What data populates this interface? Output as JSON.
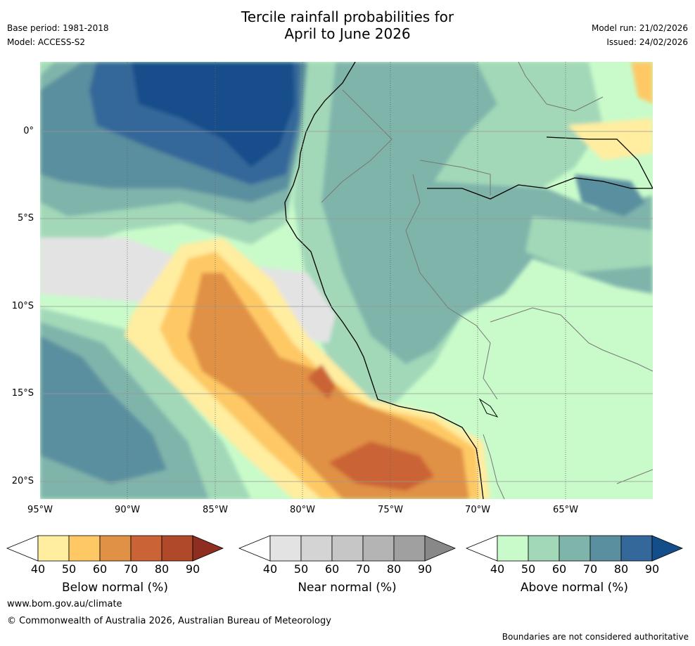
{
  "title": {
    "line1": "Tercile rainfall probabilities for",
    "line2": "April to June 2026"
  },
  "header": {
    "base_period": "Base period: 1981-2018",
    "model": "Model: ACCESS-S2",
    "model_run": "Model run: 21/02/2026",
    "issued": "Issued: 24/02/2026"
  },
  "map": {
    "lat_labels": [
      "0°",
      "5°S",
      "10°S",
      "15°S",
      "20°S"
    ],
    "lon_labels": [
      "95°W",
      "90°W",
      "85°W",
      "80°W",
      "75°W",
      "70°W",
      "65°W"
    ],
    "lat_values": [
      0,
      -5,
      -10,
      -15,
      -20
    ],
    "lon_values": [
      -95,
      -90,
      -85,
      -80,
      -75,
      -70,
      -65
    ],
    "extent": {
      "lon_min": -95,
      "lon_max": -60,
      "lat_min": -21,
      "lat_max": 4
    }
  },
  "colorbars": {
    "below": {
      "label": "Below normal (%)",
      "ticks": [
        "40",
        "50",
        "60",
        "70",
        "80",
        "90"
      ],
      "colors": [
        "#ffeda0",
        "#fec965",
        "#e09145",
        "#ca6335",
        "#b0482a",
        "#8e2e20"
      ]
    },
    "near": {
      "label": "Near normal (%)",
      "ticks": [
        "40",
        "50",
        "60",
        "70",
        "80",
        "90"
      ],
      "colors": [
        "#e3e3e3",
        "#d4d4d4",
        "#c6c6c6",
        "#b4b4b4",
        "#a0a0a0",
        "#888888"
      ]
    },
    "above": {
      "label": "Above normal (%)",
      "ticks": [
        "40",
        "50",
        "60",
        "70",
        "80",
        "90"
      ],
      "colors": [
        "#c9fbca",
        "#a2d8b8",
        "#7fb4ab",
        "#5a8f9f",
        "#34679a",
        "#144e8a"
      ]
    }
  },
  "footer": {
    "website": "www.bom.gov.au/climate",
    "copyright": "© Commonwealth of Australia 2026, Australian Bureau of Meteorology",
    "disclaimer": "Boundaries are not considered authoritative"
  }
}
